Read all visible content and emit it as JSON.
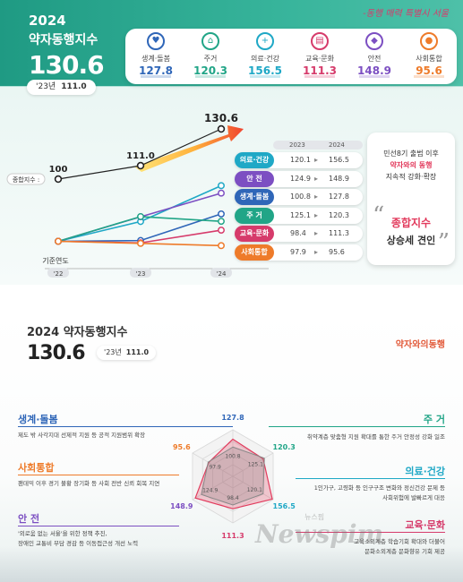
{
  "top": {
    "year": "2024",
    "title": "약자동행지수",
    "score": "130.6",
    "prev_label": "'23년",
    "prev_value": "111.0",
    "logo": "-동행 매력 특별시 서울"
  },
  "categories": [
    {
      "label": "생계·돌봄",
      "value": "127.8",
      "color": "#2f66b8",
      "icon": "care-icon"
    },
    {
      "label": "주거",
      "value": "120.3",
      "color": "#21a587",
      "icon": "house-icon"
    },
    {
      "label": "의료·건강",
      "value": "156.5",
      "color": "#1fa8c6",
      "icon": "health-icon"
    },
    {
      "label": "교육·문화",
      "value": "111.3",
      "color": "#d63b6b",
      "icon": "book-icon"
    },
    {
      "label": "안전",
      "value": "148.9",
      "color": "#7c4fc2",
      "icon": "shield-icon"
    },
    {
      "label": "사회통합",
      "value": "95.6",
      "color": "#ee7b2a",
      "icon": "integration-icon"
    }
  ],
  "chart_data": {
    "type": "line",
    "x": [
      "'22",
      "'23",
      "'24"
    ],
    "xlabel": "기준연도",
    "total": {
      "name": "종합지수",
      "values": [
        100,
        111.0,
        130.6
      ]
    },
    "series": [
      {
        "name": "의료·건강",
        "values": [
          100,
          120.1,
          156.5
        ],
        "color": "#1fa8c6"
      },
      {
        "name": "안 전",
        "values": [
          100,
          124.9,
          148.9
        ],
        "color": "#7c4fc2"
      },
      {
        "name": "생계·돌봄",
        "values": [
          100,
          100.8,
          127.8
        ],
        "color": "#2f66b8"
      },
      {
        "name": "주 거",
        "values": [
          100,
          125.1,
          120.3
        ],
        "color": "#21a587"
      },
      {
        "name": "교육·문화",
        "values": [
          100,
          98.4,
          111.3
        ],
        "color": "#d63b6b"
      },
      {
        "name": "사회통합",
        "values": [
          100,
          97.9,
          95.6
        ],
        "color": "#ee7b2a"
      }
    ],
    "legend_head": [
      "2023",
      "2024"
    ],
    "total_label": "종합지수",
    "point_labels": [
      "100",
      "111.0",
      "130.6"
    ]
  },
  "side_card": {
    "line1": "민선8기 출범 이후",
    "line2": "약자와의 동행",
    "line3": "지속적 강화·확장",
    "highlight": "종합지수",
    "line4": "상승세 견인"
  },
  "bottom": {
    "title": "2024 약자동행지수",
    "score": "130.6",
    "prev_label": "'23년",
    "prev_value": "111.0",
    "logo": "약자와의동행"
  },
  "factors": [
    {
      "name": "생계·돌봄",
      "desc": "제도 밖 사각지대 선제적 지원 등 공적 지원범위 확장",
      "color": "#2f66b8"
    },
    {
      "name": "사회통합",
      "desc": "팬데믹 이후 경기 불황 장기화 등 사회 전반 신뢰 회복 지연",
      "color": "#ee7b2a"
    },
    {
      "name": "안 전",
      "desc1": "'외로움 없는 서울'을 위한 정책 추진,",
      "desc2": "장애인 교통비 부담 경감 등 이동접근성 개선 노력",
      "color": "#7c4fc2"
    },
    {
      "name": "주 거",
      "desc": "취약계층 맞춤형 지원 확대를 통한 주거 안정성 강화 일조",
      "color": "#21a587"
    },
    {
      "name": "의료·건강",
      "desc1": "1인가구, 고령화 등 인구구조 변화와 정신건강 문제 등",
      "desc2": "사회위험에 발빠르게 대응",
      "color": "#1fa8c6"
    },
    {
      "name": "교육·문화",
      "desc1": "교육소외계층 학습기회 확대와 더불어",
      "desc2": "문화소외계층 문화향유 기회 제공",
      "color": "#d63b6b"
    }
  ],
  "radar": {
    "outer": [
      "127.8",
      "120.3",
      "156.5",
      "111.3",
      "148.9",
      "95.6"
    ],
    "inner": [
      "100.8",
      "125.1",
      "120.1",
      "98.4",
      "124.9",
      "97.9"
    ]
  },
  "watermark": "Newspim",
  "watermark_sub": "뉴스핌"
}
